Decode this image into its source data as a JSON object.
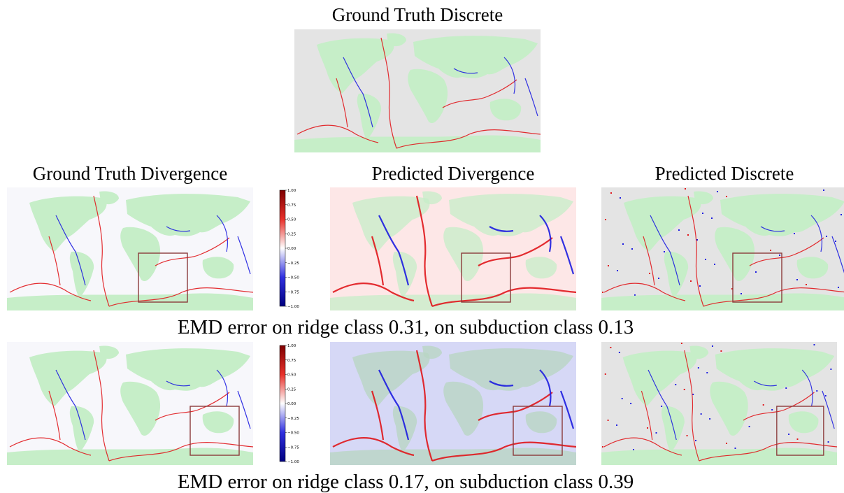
{
  "titles": {
    "top": "Ground Truth Discrete",
    "gt_divergence": "Ground Truth Divergence",
    "pred_divergence": "Predicted Divergence",
    "pred_discrete": "Predicted Discrete"
  },
  "captions": {
    "row1": "EMD error on ridge class 0.31, on subduction class 0.13",
    "row2": "EMD error on ridge class 0.17, on subduction class 0.39"
  },
  "colorbar": {
    "ticks": [
      "1.00",
      "0.75",
      "0.50",
      "0.25",
      "0.00",
      "−0.25",
      "−0.50",
      "−0.75",
      "−1.00"
    ]
  },
  "colors": {
    "continent": "#c6eec8",
    "ocean_discrete": "#e4e4e4",
    "ocean_divergence": "#f7f7fb",
    "ridge": "#e0161b",
    "subduction": "#1c1ce0",
    "box": "#8b3a3a"
  }
}
